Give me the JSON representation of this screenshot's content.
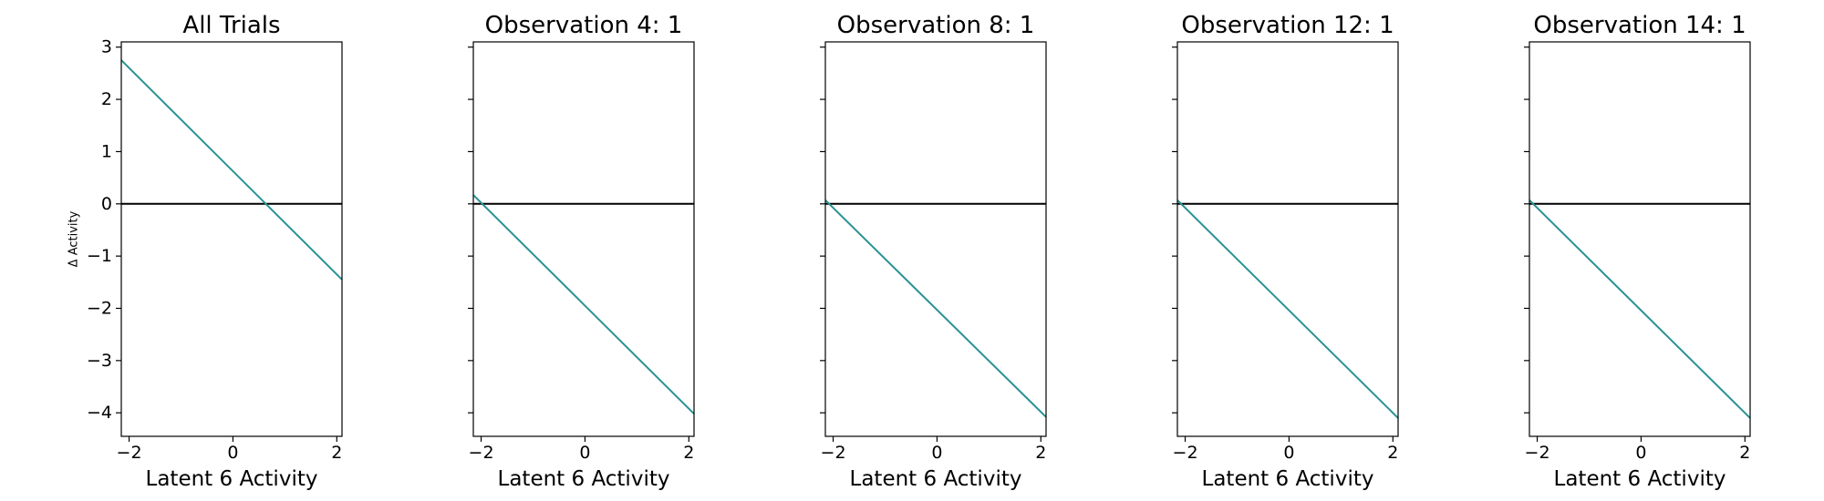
{
  "chart_data": [
    {
      "type": "line",
      "title": "All Trials",
      "xlabel": "Latent 6 Activity",
      "ylabel": "Δ Activity",
      "xlim": [
        -2.15,
        2.1
      ],
      "ylim": [
        -4.45,
        3.1
      ],
      "xticks": [
        -2,
        0,
        2
      ],
      "yticks": [
        -4,
        -3,
        -2,
        -1,
        0,
        1,
        2,
        3
      ],
      "show_yticklabels": true,
      "series": [
        {
          "x": [
            -2.15,
            2.1
          ],
          "y": [
            2.75,
            -1.45
          ],
          "color": "#2a9294"
        }
      ],
      "reference_line": {
        "y": 0,
        "color": "#000000"
      }
    },
    {
      "type": "line",
      "title": "Observation 4: 1",
      "xlabel": "Latent 6 Activity",
      "ylabel": "",
      "xlim": [
        -2.15,
        2.1
      ],
      "ylim": [
        -4.45,
        3.1
      ],
      "xticks": [
        -2,
        0,
        2
      ],
      "yticks": [
        -4,
        -3,
        -2,
        -1,
        0,
        1,
        2,
        3
      ],
      "show_yticklabels": false,
      "series": [
        {
          "x": [
            -2.15,
            2.1
          ],
          "y": [
            0.17,
            -4.02
          ],
          "color": "#2a9294"
        }
      ],
      "reference_line": {
        "y": 0,
        "color": "#000000"
      }
    },
    {
      "type": "line",
      "title": "Observation 8: 1",
      "xlabel": "Latent 6 Activity",
      "ylabel": "",
      "xlim": [
        -2.15,
        2.1
      ],
      "ylim": [
        -4.45,
        3.1
      ],
      "xticks": [
        -2,
        0,
        2
      ],
      "yticks": [
        -4,
        -3,
        -2,
        -1,
        0,
        1,
        2,
        3
      ],
      "show_yticklabels": false,
      "series": [
        {
          "x": [
            -2.15,
            2.1
          ],
          "y": [
            0.07,
            -4.08
          ],
          "color": "#2a9294"
        }
      ],
      "reference_line": {
        "y": 0,
        "color": "#000000"
      }
    },
    {
      "type": "line",
      "title": "Observation 12: 1",
      "xlabel": "Latent 6 Activity",
      "ylabel": "",
      "xlim": [
        -2.15,
        2.1
      ],
      "ylim": [
        -4.45,
        3.1
      ],
      "xticks": [
        -2,
        0,
        2
      ],
      "yticks": [
        -4,
        -3,
        -2,
        -1,
        0,
        1,
        2,
        3
      ],
      "show_yticklabels": false,
      "series": [
        {
          "x": [
            -2.15,
            2.1
          ],
          "y": [
            0.07,
            -4.1
          ],
          "color": "#2a9294"
        }
      ],
      "reference_line": {
        "y": 0,
        "color": "#000000"
      }
    },
    {
      "type": "line",
      "title": "Observation 14: 1",
      "xlabel": "Latent 6 Activity",
      "ylabel": "",
      "xlim": [
        -2.15,
        2.1
      ],
      "ylim": [
        -4.45,
        3.1
      ],
      "xticks": [
        -2,
        0,
        2
      ],
      "yticks": [
        -4,
        -3,
        -2,
        -1,
        0,
        1,
        2,
        3
      ],
      "show_yticklabels": false,
      "series": [
        {
          "x": [
            -2.15,
            2.1
          ],
          "y": [
            0.07,
            -4.1
          ],
          "color": "#2a9294"
        }
      ],
      "reference_line": {
        "y": 0,
        "color": "#000000"
      }
    }
  ]
}
